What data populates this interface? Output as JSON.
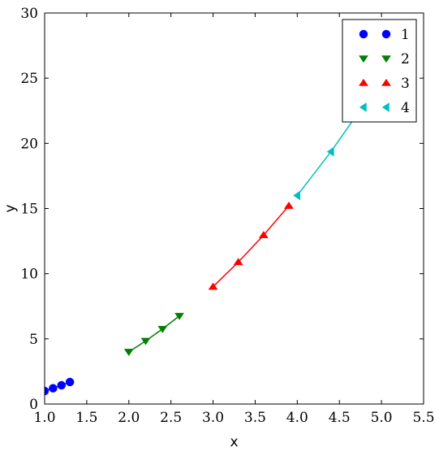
{
  "chart_data": {
    "type": "line",
    "title": "",
    "xlabel": "x",
    "ylabel": "y",
    "xlim": [
      1.0,
      5.5
    ],
    "ylim": [
      0,
      30
    ],
    "x_ticks": [
      1.0,
      1.5,
      2.0,
      2.5,
      3.0,
      3.5,
      4.0,
      4.5,
      5.0,
      5.5
    ],
    "x_tick_labels": [
      "1.0",
      "1.5",
      "2.0",
      "2.5",
      "3.0",
      "3.5",
      "4.0",
      "4.5",
      "5.0",
      "5.5"
    ],
    "y_ticks": [
      0,
      5,
      10,
      15,
      20,
      25,
      30
    ],
    "y_tick_labels": [
      "0",
      "5",
      "10",
      "15",
      "20",
      "25",
      "30"
    ],
    "grid": false,
    "legend_position": "top-right",
    "series": [
      {
        "name": "1",
        "marker": "circle",
        "color": "#0000ff",
        "x": [
          1.0,
          1.1,
          1.2,
          1.3
        ],
        "y": [
          1.0,
          1.21,
          1.44,
          1.69
        ]
      },
      {
        "name": "2",
        "marker": "triangle-down",
        "color": "#008000",
        "x": [
          2.0,
          2.2,
          2.4,
          2.6
        ],
        "y": [
          4.0,
          4.84,
          5.76,
          6.76
        ]
      },
      {
        "name": "3",
        "marker": "triangle-up",
        "color": "#ff0000",
        "x": [
          3.0,
          3.3,
          3.6,
          3.9
        ],
        "y": [
          9.0,
          10.89,
          12.96,
          15.21
        ]
      },
      {
        "name": "4",
        "marker": "triangle-left",
        "color": "#00bfbf",
        "x": [
          4.0,
          4.4,
          4.8,
          5.2
        ],
        "y": [
          16.0,
          19.36,
          23.04,
          27.04
        ]
      }
    ]
  }
}
